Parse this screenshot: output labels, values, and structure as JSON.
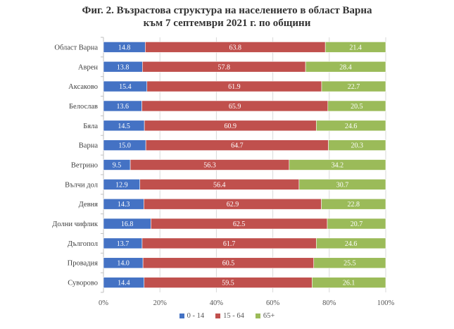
{
  "chart_data": {
    "type": "bar",
    "orientation": "horizontal",
    "stacked": "percent",
    "title": [
      "Фиг. 2. Възрастова структура на населението в област Варна",
      "към 7 септември 2021 г. по общини"
    ],
    "categories": [
      "Област Варна",
      "Аврен",
      "Аксаково",
      "Белослав",
      "Бяла",
      "Варна",
      "Ветрино",
      "Вълчи дол",
      "Девня",
      "Долни чифлик",
      "Дългопол",
      "Провадия",
      "Суворово"
    ],
    "series": [
      {
        "name": "0 - 14",
        "color": "#4472C4",
        "values": [
          14.8,
          13.8,
          15.4,
          13.6,
          14.5,
          15.0,
          9.5,
          12.9,
          14.3,
          16.8,
          13.7,
          14.0,
          14.4
        ]
      },
      {
        "name": "15 - 64",
        "color": "#C0504D",
        "values": [
          63.8,
          57.8,
          61.9,
          65.9,
          60.9,
          64.7,
          56.3,
          56.4,
          62.9,
          62.5,
          61.7,
          60.5,
          59.5
        ]
      },
      {
        "name": "65+",
        "color": "#9BBB59",
        "values": [
          21.4,
          28.4,
          22.7,
          20.5,
          24.6,
          20.3,
          34.2,
          30.7,
          22.8,
          20.7,
          24.6,
          25.5,
          26.1
        ]
      }
    ],
    "x_ticks": [
      "0%",
      "20%",
      "40%",
      "60%",
      "80%",
      "100%"
    ],
    "xlim": [
      0,
      100
    ],
    "legend": "bottom",
    "grid": true
  }
}
